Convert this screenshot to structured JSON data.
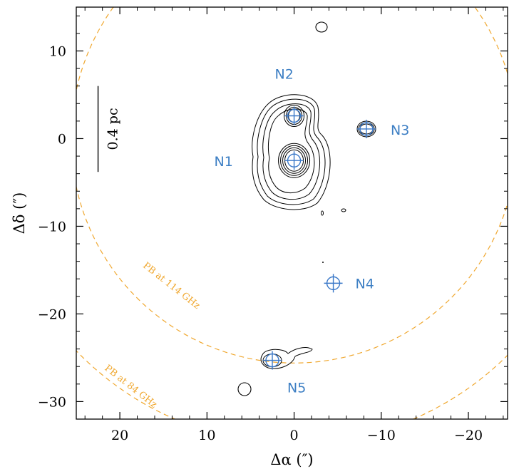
{
  "chart_data": {
    "type": "scatter",
    "title": "",
    "xlabel": "Δα (″)",
    "ylabel": "Δδ (″)",
    "xlim": [
      25,
      -24.5
    ],
    "ylim": [
      -32,
      15
    ],
    "xticks": [
      20,
      10,
      0,
      -10,
      -20
    ],
    "yticks": [
      10,
      0,
      -10,
      -20,
      -30
    ],
    "tick_labels_x": [
      "20",
      "10",
      "0",
      "−10",
      "−20"
    ],
    "tick_labels_y": [
      "10",
      "0",
      "−10",
      "−20",
      "−30"
    ],
    "grid": false,
    "legend": "none",
    "sources": [
      {
        "name": "N1",
        "x": 0.0,
        "y": -2.5
      },
      {
        "name": "N2",
        "x": 0.0,
        "y": 2.6
      },
      {
        "name": "N3",
        "x": -8.3,
        "y": 1.1
      },
      {
        "name": "N4",
        "x": -4.5,
        "y": -16.5
      },
      {
        "name": "N5",
        "x": 2.5,
        "y": -25.3
      }
    ],
    "primary_beams": [
      {
        "label": "PB at 114 GHz",
        "center": [
          0,
          0
        ],
        "radius": 25.6
      },
      {
        "label": "PB at 84 GHz",
        "center": [
          0,
          0
        ],
        "radius": 34.8
      }
    ],
    "scale_bar": {
      "label": "0.4 pc",
      "x": 22.5,
      "y_from": -3.8,
      "y_to": 6.0
    },
    "contours": {
      "main_core": {
        "levels": [
          1,
          2,
          3,
          4,
          5,
          6,
          7,
          8
        ]
      },
      "n2_core": {
        "levels": [
          1,
          2,
          3
        ]
      }
    }
  },
  "colors": {
    "source_marker": "#3a78c8",
    "source_label": "#3d7fc4",
    "primary_beam": "#f0a830",
    "contour": "#000000"
  }
}
